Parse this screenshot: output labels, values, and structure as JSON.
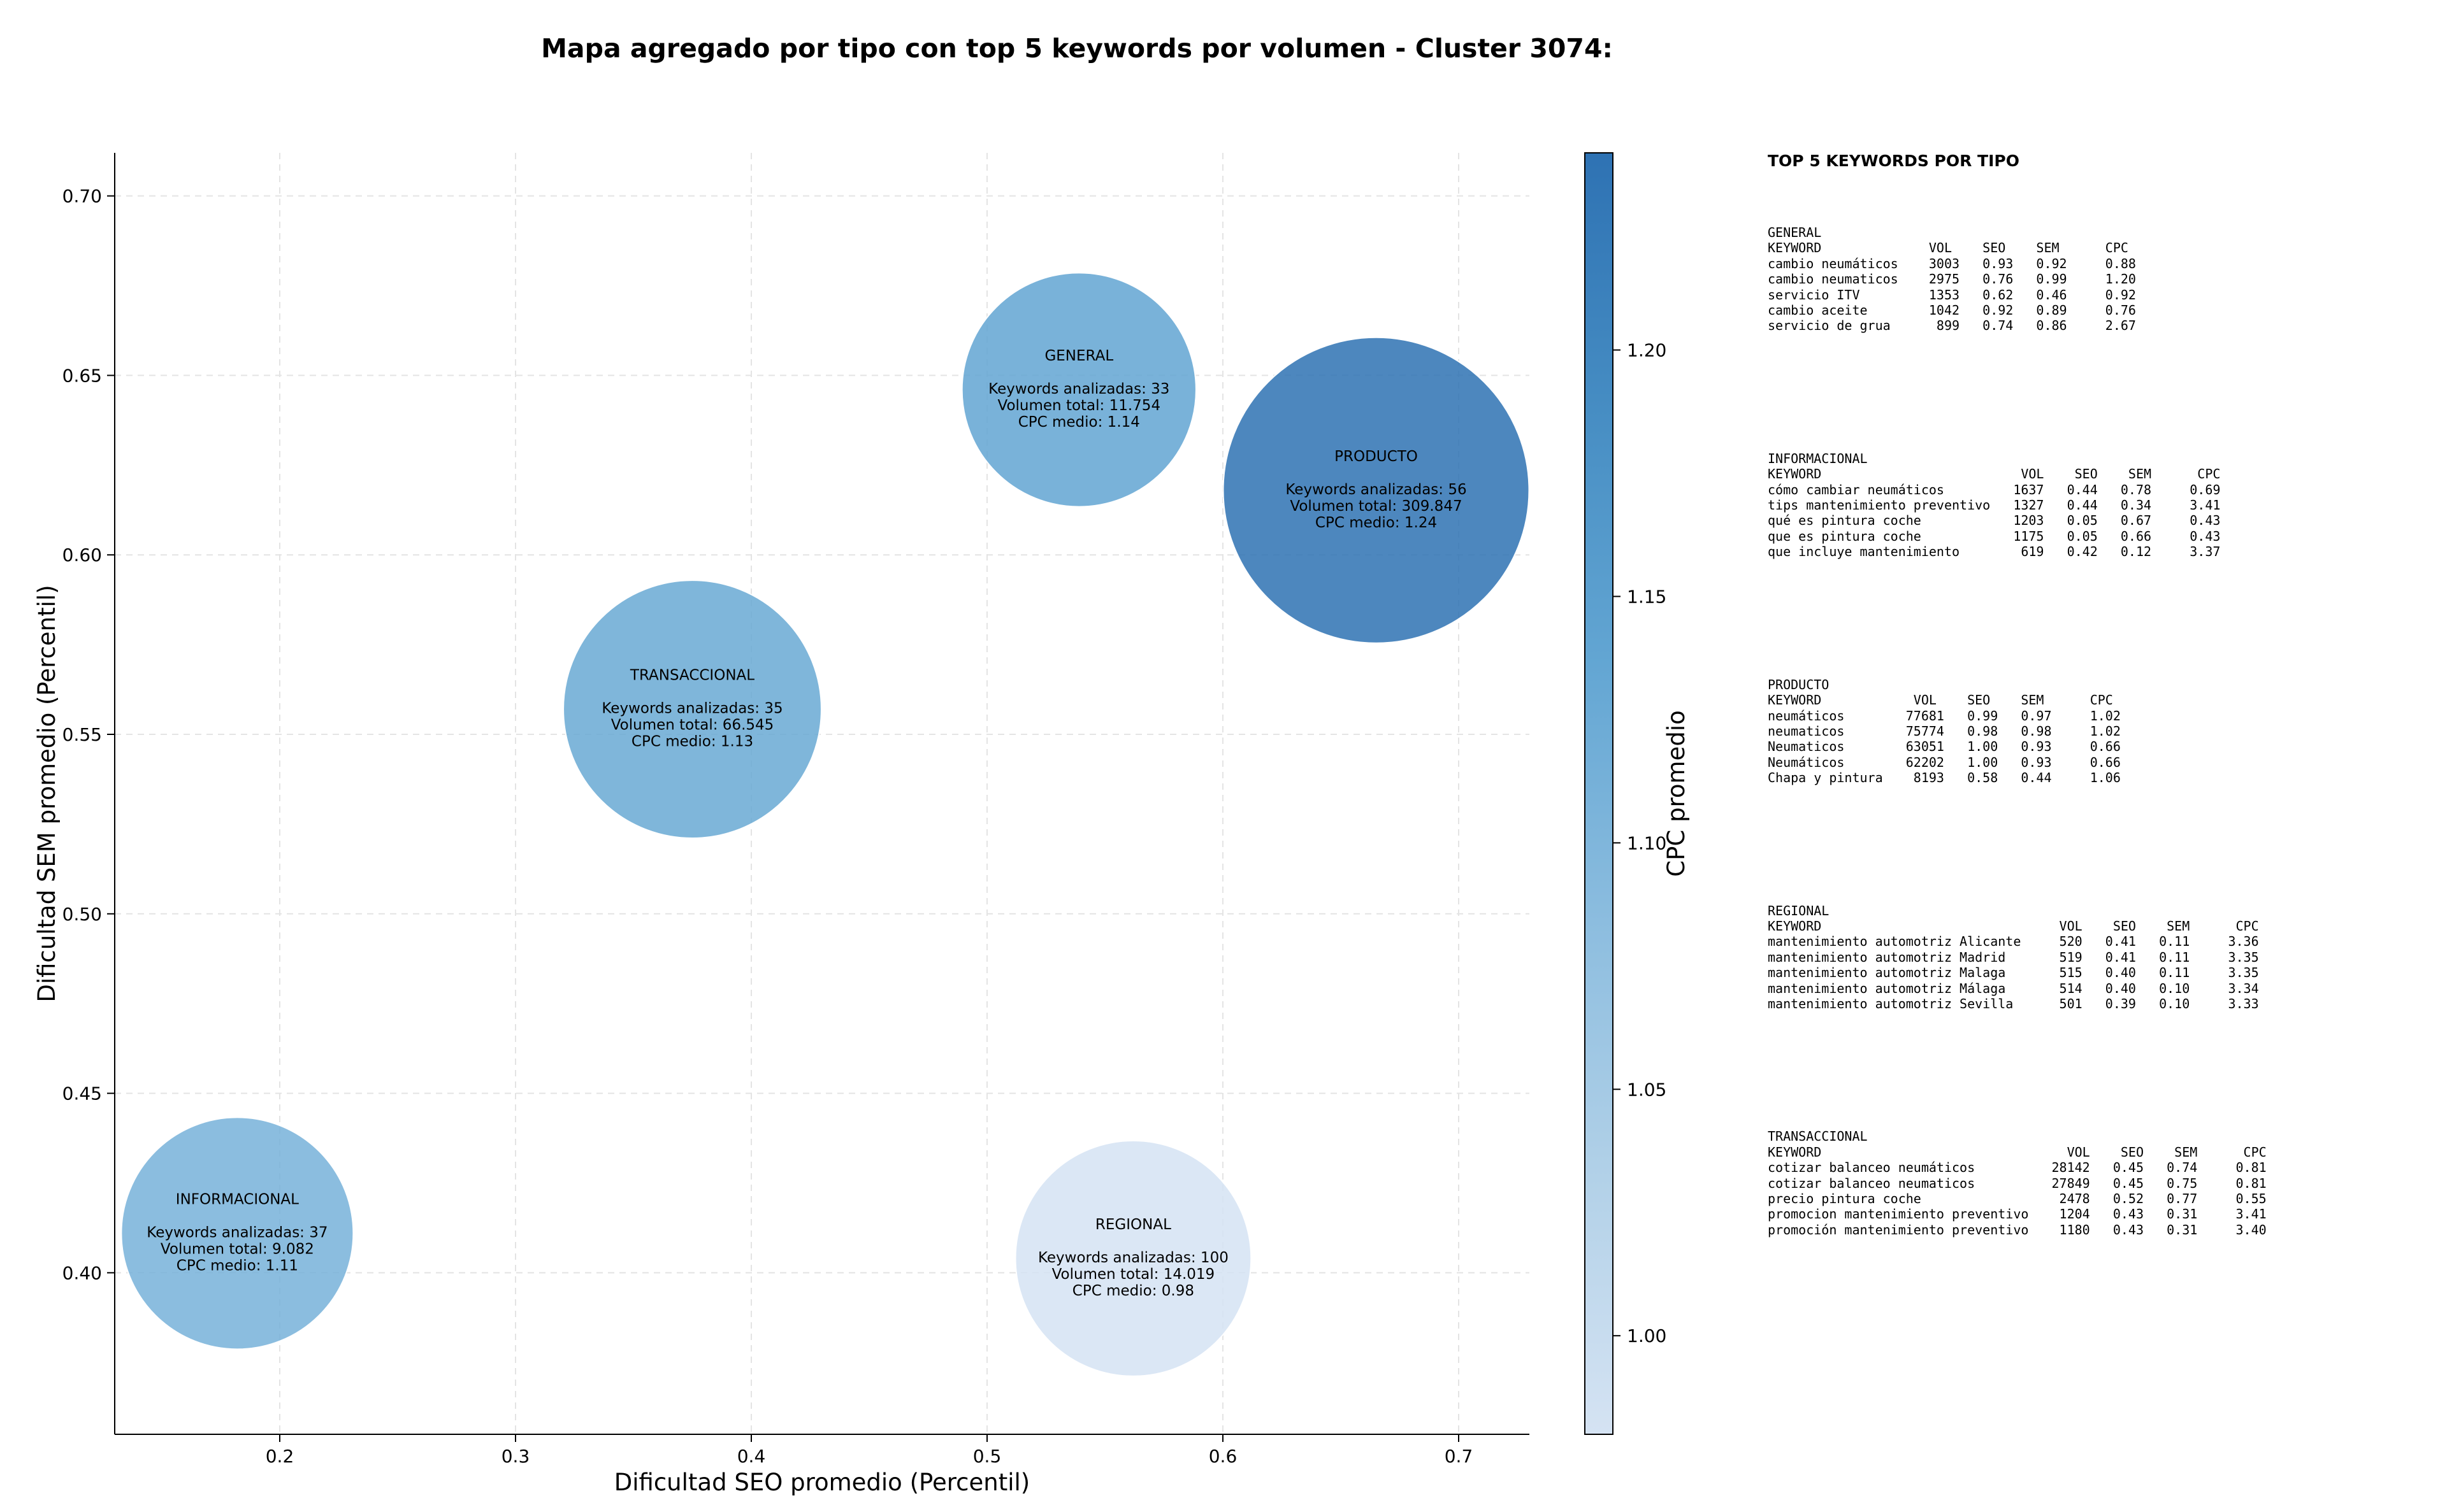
{
  "title": "Mapa agregado por tipo con top 5 keywords por volumen - Cluster 3074:",
  "chart_data": {
    "type": "scatter",
    "subtype": "bubble",
    "xlabel": "Dificultad SEO promedio (Percentil)",
    "ylabel": "Dificultad SEM promedio (Percentil)",
    "xlim": [
      0.13,
      0.73
    ],
    "ylim": [
      0.355,
      0.712
    ],
    "xticks": [
      "0.2",
      "0.3",
      "0.4",
      "0.5",
      "0.6",
      "0.7"
    ],
    "yticks": [
      "0.40",
      "0.45",
      "0.50",
      "0.55",
      "0.60",
      "0.65",
      "0.70"
    ],
    "grid": true,
    "colorbar": {
      "label": "CPC promedio",
      "range": [
        0.98,
        1.24
      ],
      "ticks": [
        "1.00",
        "1.05",
        "1.10",
        "1.15",
        "1.20"
      ],
      "colormap": [
        "#d5e3f3",
        "#b2d1e8",
        "#8cbddf",
        "#63a6d3",
        "#468dc3",
        "#2e72b3"
      ]
    },
    "bubbles": [
      {
        "name": "GENERAL",
        "x": 0.539,
        "y": 0.646,
        "volume": 11754,
        "cpc": 1.14,
        "lines": [
          "Keywords analizadas: 33",
          "Volumen total: 11.754",
          "CPC medio: 1.14"
        ]
      },
      {
        "name": "PRODUCTO",
        "x": 0.665,
        "y": 0.618,
        "volume": 309847,
        "cpc": 1.24,
        "lines": [
          "Keywords analizadas: 56",
          "Volumen total: 309.847",
          "CPC medio: 1.24"
        ]
      },
      {
        "name": "TRANSACCIONAL",
        "x": 0.375,
        "y": 0.557,
        "volume": 66545,
        "cpc": 1.13,
        "lines": [
          "Keywords analizadas: 35",
          "Volumen total: 66.545",
          "CPC medio: 1.13"
        ]
      },
      {
        "name": "INFORMACIONAL",
        "x": 0.182,
        "y": 0.411,
        "volume": 9082,
        "cpc": 1.11,
        "lines": [
          "Keywords analizadas: 37",
          "Volumen total: 9.082",
          "CPC medio: 1.11"
        ]
      },
      {
        "name": "REGIONAL",
        "x": 0.562,
        "y": 0.404,
        "volume": 14019,
        "cpc": 0.98,
        "lines": [
          "Keywords analizadas: 100",
          "Volumen total: 14.019",
          "CPC medio: 0.98"
        ]
      }
    ]
  },
  "keywords_panel": {
    "title": "TOP 5 KEYWORDS POR TIPO",
    "blocks": [
      {
        "name": "GENERAL",
        "header": "KEYWORD              VOL    SEO    SEM      CPC",
        "rows": [
          "cambio neumáticos    3003   0.93   0.92     0.88",
          "cambio neumaticos    2975   0.76   0.99     1.20",
          "servicio ITV         1353   0.62   0.46     0.92",
          "cambio aceite        1042   0.92   0.89     0.76",
          "servicio de grua      899   0.74   0.86     2.67"
        ]
      },
      {
        "name": "INFORMACIONAL",
        "header": "KEYWORD                          VOL    SEO    SEM      CPC",
        "rows": [
          "cómo cambiar neumáticos         1637   0.44   0.78     0.69",
          "tips mantenimiento preventivo   1327   0.44   0.34     3.41",
          "qué es pintura coche            1203   0.05   0.67     0.43",
          "que es pintura coche            1175   0.05   0.66     0.43",
          "que incluye mantenimiento        619   0.42   0.12     3.37"
        ]
      },
      {
        "name": "PRODUCTO",
        "header": "KEYWORD            VOL    SEO    SEM      CPC",
        "rows": [
          "neumáticos        77681   0.99   0.97     1.02",
          "neumaticos        75774   0.98   0.98     1.02",
          "Neumaticos        63051   1.00   0.93     0.66",
          "Neumáticos        62202   1.00   0.93     0.66",
          "Chapa y pintura    8193   0.58   0.44     1.06"
        ]
      },
      {
        "name": "REGIONAL",
        "header": "KEYWORD                               VOL    SEO    SEM      CPC",
        "rows": [
          "mantenimiento automotriz Alicante     520   0.41   0.11     3.36",
          "mantenimiento automotriz Madrid       519   0.41   0.11     3.35",
          "mantenimiento automotriz Malaga       515   0.40   0.11     3.35",
          "mantenimiento automotriz Málaga       514   0.40   0.10     3.34",
          "mantenimiento automotriz Sevilla      501   0.39   0.10     3.33"
        ]
      },
      {
        "name": "TRANSACCIONAL",
        "header": "KEYWORD                                VOL    SEO    SEM      CPC",
        "rows": [
          "cotizar balanceo neumáticos          28142   0.45   0.74     0.81",
          "cotizar balanceo neumaticos          27849   0.45   0.75     0.81",
          "precio pintura coche                  2478   0.52   0.77     0.55",
          "promocion mantenimiento preventivo    1204   0.43   0.31     3.41",
          "promoción mantenimiento preventivo    1180   0.43   0.31     3.40"
        ]
      }
    ]
  }
}
